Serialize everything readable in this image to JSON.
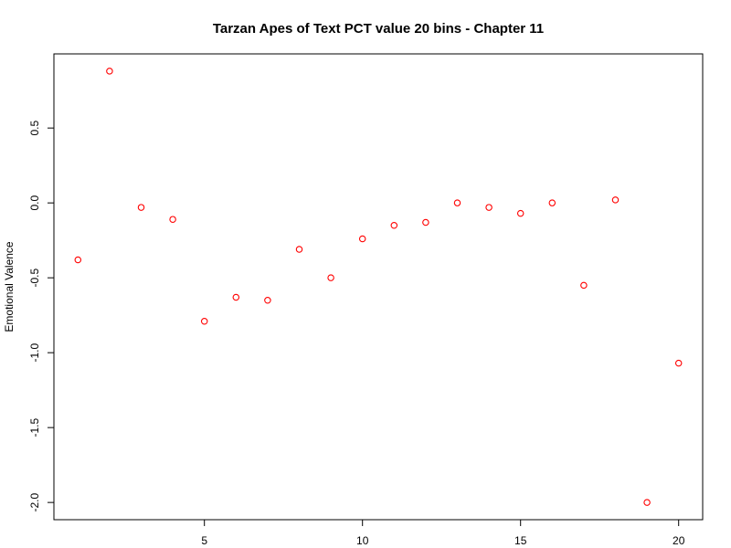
{
  "chart_data": {
    "type": "scatter",
    "title": "Tarzan Apes of Text PCT value 20 bins - Chapter 11",
    "xlabel": "",
    "ylabel": "Emotional Valence",
    "xlim": [
      0.24,
      20.76
    ],
    "ylim": [
      -2.115,
      0.995
    ],
    "x_ticks": [
      5,
      10,
      15,
      20
    ],
    "y_ticks": [
      -2.0,
      -1.5,
      -1.0,
      -0.5,
      0.0,
      0.5
    ],
    "x_tick_labels": [
      "5",
      "10",
      "15",
      "20"
    ],
    "y_tick_labels": [
      "-2.0",
      "-1.5",
      "-1.0",
      "-0.5",
      "0.0",
      "0.5"
    ],
    "grid": false,
    "marker_color": "#ff0000",
    "series": [
      {
        "x": [
          1,
          2,
          3,
          4,
          5,
          6,
          7,
          8,
          9,
          10,
          11,
          12,
          13,
          14,
          15,
          16,
          17,
          18,
          19,
          20
        ],
        "values": [
          -0.38,
          0.88,
          -0.03,
          -0.11,
          -0.79,
          -0.63,
          -0.65,
          -0.31,
          -0.5,
          -0.24,
          -0.15,
          -0.13,
          0.0,
          -0.03,
          -0.07,
          0.0,
          -0.55,
          0.02,
          -2.0,
          -1.07
        ]
      }
    ]
  }
}
